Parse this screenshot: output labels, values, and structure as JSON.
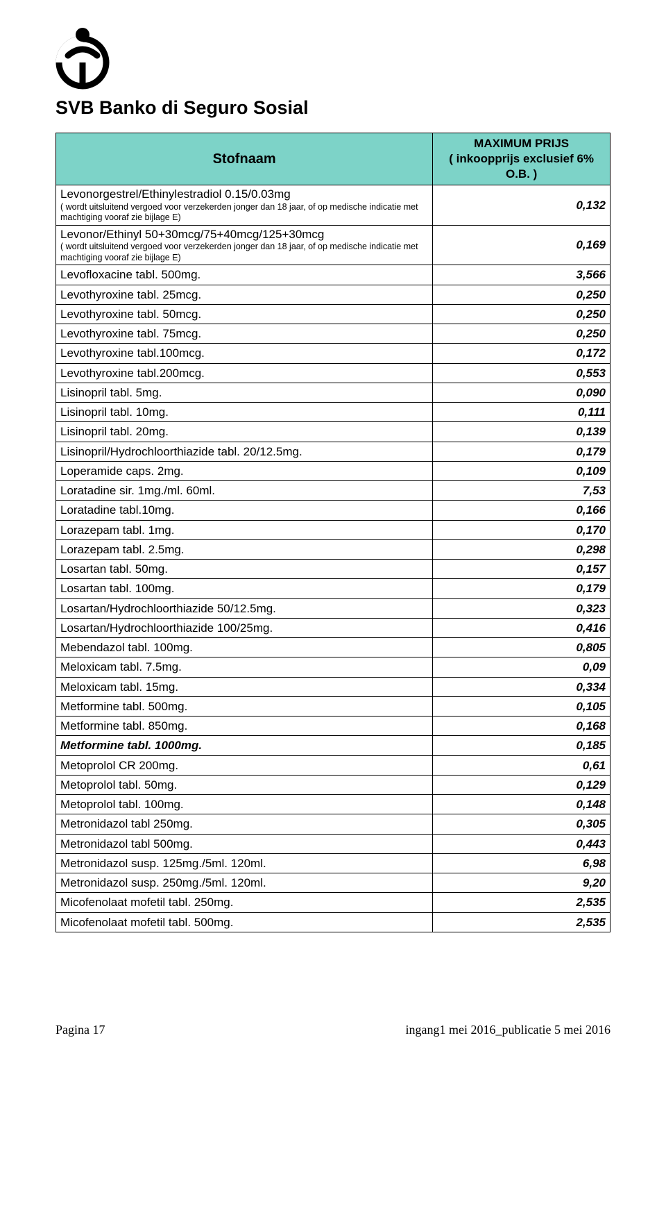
{
  "header": {
    "title": "SVB  Banko di Seguro Sosial"
  },
  "table": {
    "col_name_label": "Stofnaam",
    "col_price_label_l1": "MAXIMUM PRIJS",
    "col_price_label_l2": "( inkoopprijs exclusief 6% O.B. )",
    "rows": [
      {
        "name": "Levonorgestrel/Ethinylestradiol 0.15/0.03mg",
        "sub": "( wordt uitsluitend vergoed voor verzekerden jonger dan 18 jaar, of op medische indicatie met machtiging vooraf zie bijlage  E)",
        "price": "0,132"
      },
      {
        "name": "Levonor/Ethinyl 50+30mcg/75+40mcg/125+30mcg",
        "sub": "( wordt uitsluitend vergoed voor verzekerden jonger dan 18 jaar, of op medische indicatie met machtiging vooraf zie bijlage E)",
        "price": "0,169"
      },
      {
        "name": "Levofloxacine tabl. 500mg.",
        "price": "3,566"
      },
      {
        "name": "Levothyroxine tabl.  25mcg.",
        "price": "0,250"
      },
      {
        "name": "Levothyroxine tabl.  50mcg.",
        "price": "0,250"
      },
      {
        "name": "Levothyroxine tabl.  75mcg.",
        "price": "0,250"
      },
      {
        "name": "Levothyroxine tabl.100mcg.",
        "price": "0,172"
      },
      {
        "name": "Levothyroxine tabl.200mcg.",
        "price": "0,553"
      },
      {
        "name": "Lisinopril tabl.   5mg.",
        "price": "0,090"
      },
      {
        "name": "Lisinopril tabl. 10mg.",
        "price": "0,111"
      },
      {
        "name": "Lisinopril tabl. 20mg.",
        "price": "0,139"
      },
      {
        "name": "Lisinopril/Hydrochloorthiazide tabl. 20/12.5mg.",
        "price": "0,179"
      },
      {
        "name": "Loperamide caps. 2mg.",
        "price": "0,109"
      },
      {
        "name": "Loratadine sir. 1mg./ml.  60ml.",
        "price": "7,53"
      },
      {
        "name": "Loratadine tabl.10mg.",
        "price": "0,166"
      },
      {
        "name": "Lorazepam tabl. 1mg.",
        "price": "0,170"
      },
      {
        "name": "Lorazepam tabl. 2.5mg.",
        "price": "0,298"
      },
      {
        "name": "Losartan tabl.   50mg.",
        "price": "0,157"
      },
      {
        "name": "Losartan tabl. 100mg.",
        "price": "0,179"
      },
      {
        "name": "Losartan/Hydrochloorthiazide  50/12.5mg.",
        "price": "0,323"
      },
      {
        "name": "Losartan/Hydrochloorthiazide 100/25mg.",
        "price": "0,416"
      },
      {
        "name": "Mebendazol tabl. 100mg.",
        "price": "0,805"
      },
      {
        "name": "Meloxicam tabl.   7.5mg.",
        "price": "0,09"
      },
      {
        "name": "Meloxicam tabl. 15mg.",
        "price": "0,334"
      },
      {
        "name": "Metformine tabl. 500mg.",
        "price": "0,105"
      },
      {
        "name": "Metformine tabl. 850mg.",
        "price": "0,168"
      },
      {
        "name": "Metformine tabl. 1000mg.",
        "price": "0,185",
        "bolditalic": true
      },
      {
        "name": "Metoprolol CR 200mg.",
        "price": "0,61"
      },
      {
        "name": "Metoprolol tabl.   50mg.",
        "price": "0,129"
      },
      {
        "name": "Metoprolol tabl. 100mg.",
        "price": "0,148"
      },
      {
        "name": "Metronidazol tabl 250mg.",
        "price": "0,305"
      },
      {
        "name": "Metronidazol tabl 500mg.",
        "price": "0,443"
      },
      {
        "name": "Metronidazol susp. 125mg./5ml. 120ml.",
        "price": "6,98"
      },
      {
        "name": "Metronidazol susp. 250mg./5ml. 120ml.",
        "price": "9,20"
      },
      {
        "name": "Micofenolaat mofetil tabl. 250mg.",
        "price": "2,535"
      },
      {
        "name": "Micofenolaat mofetil tabl. 500mg.",
        "price": "2,535"
      }
    ]
  },
  "footer": {
    "left": "Pagina 17",
    "right": "ingang1 mei 2016_publicatie 5 mei 2016"
  }
}
